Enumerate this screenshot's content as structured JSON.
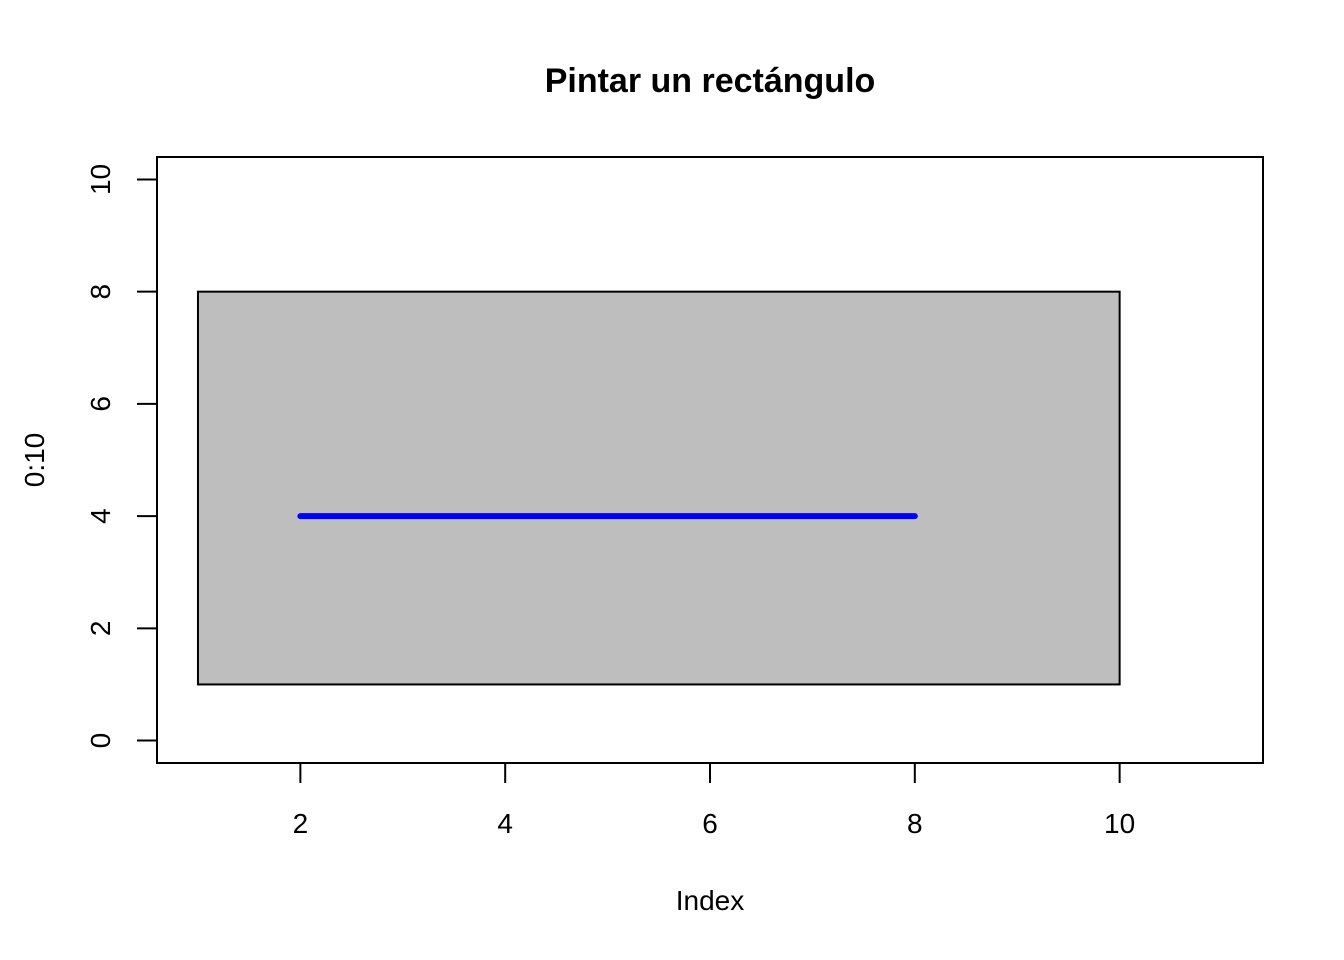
{
  "chart_data": {
    "type": "line",
    "title": "Pintar un rectángulo",
    "xlabel": "Index",
    "ylabel": "0:10",
    "xlim": [
      0.6,
      11.4
    ],
    "ylim": [
      -0.4,
      10.4
    ],
    "x_ticks": [
      2,
      4,
      6,
      8,
      10
    ],
    "y_ticks": [
      0,
      2,
      4,
      6,
      8,
      10
    ],
    "grid": false,
    "rectangle": {
      "x0": 1,
      "y0": 1,
      "x1": 10,
      "y1": 8,
      "fill": "#bebebe",
      "border": "#000000"
    },
    "series": [
      {
        "color": "#0000ff",
        "x": [
          2,
          8
        ],
        "y": [
          4,
          4
        ]
      }
    ]
  }
}
